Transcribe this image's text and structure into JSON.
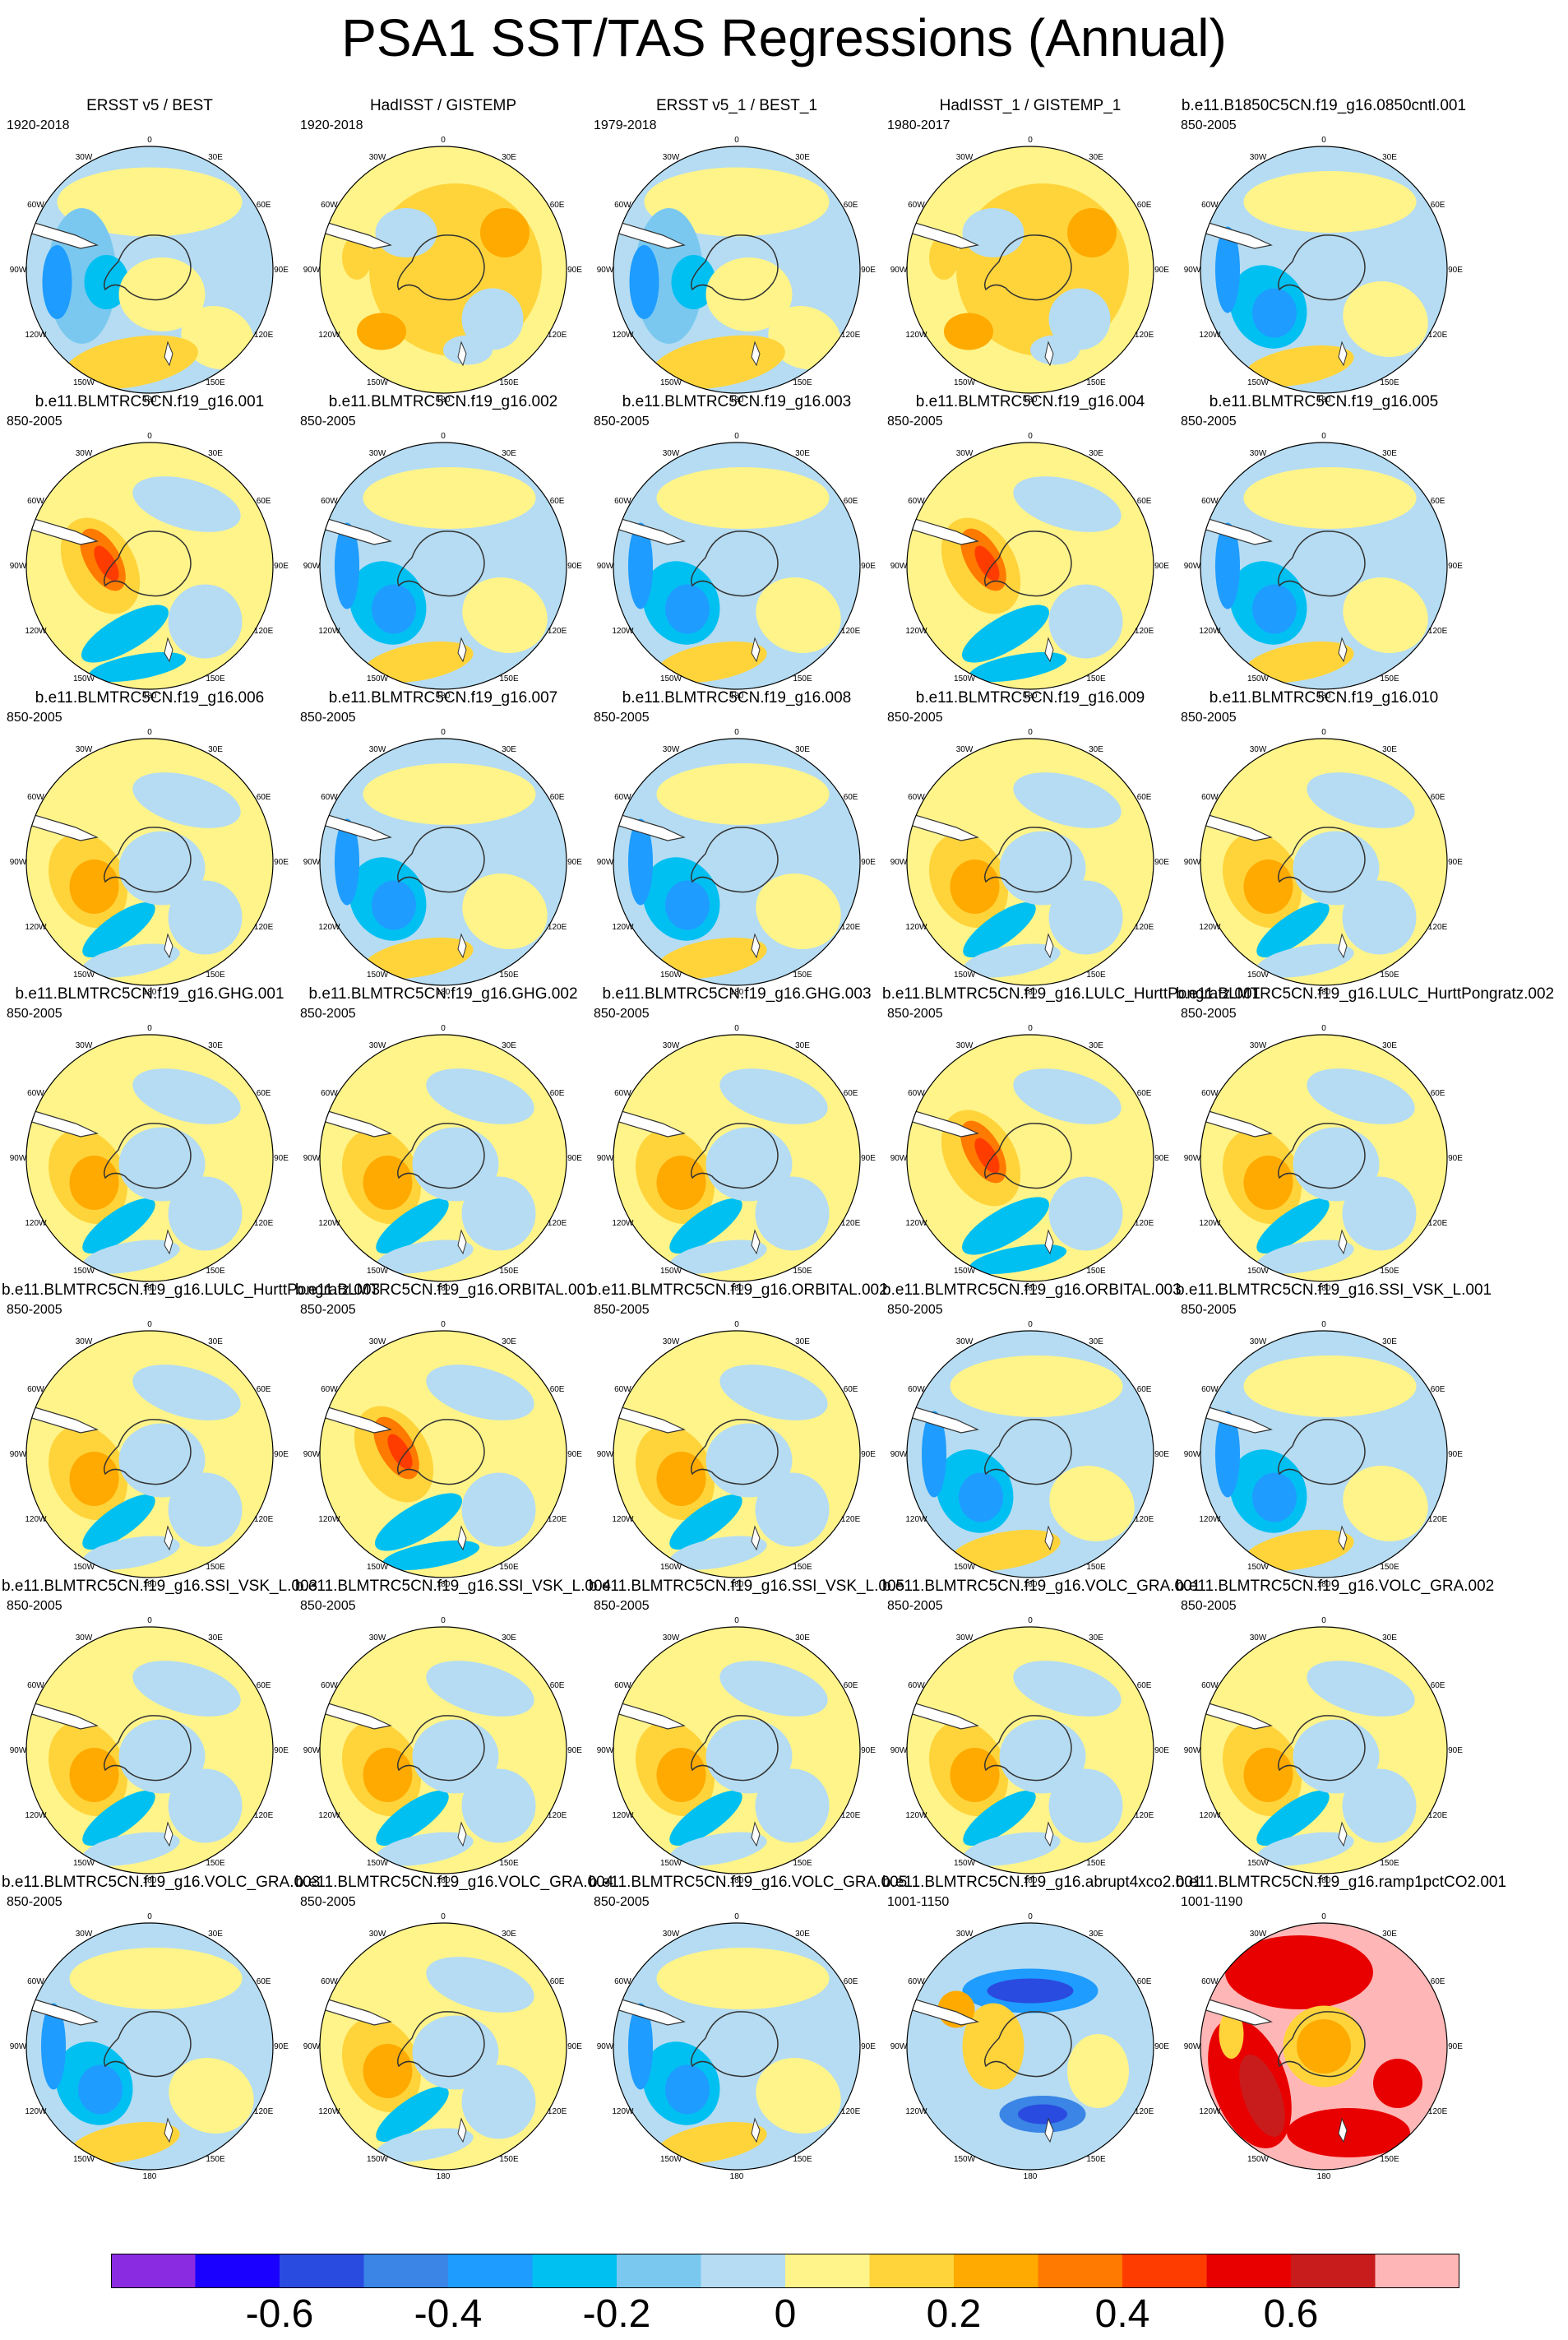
{
  "title": "PSA1 SST/TAS Regressions (Annual)",
  "chart_data": {
    "type": "heatmap",
    "projection": "south-polar-stereographic",
    "layout": "7 rows x 5 columns",
    "longitude_labels": [
      "0",
      "30E",
      "60E",
      "90E",
      "120E",
      "150E",
      "180",
      "150W",
      "120W",
      "90W",
      "60W",
      "30W"
    ],
    "colorbar": {
      "colors": [
        "#8a2be2",
        "#1a00ff",
        "#2a4be0",
        "#3a85e6",
        "#1e9cff",
        "#00c0f2",
        "#7ac8ef",
        "#b5dcf2",
        "#fff48a",
        "#ffd43b",
        "#ffaa00",
        "#ff7a00",
        "#ff3c00",
        "#e80000",
        "#c81c1c",
        "#ffb6b6"
      ],
      "tick_labels": [
        "-0.6",
        "-0.4",
        "-0.2",
        "0",
        "0.2",
        "0.4",
        "0.6"
      ],
      "tick_values": [
        -0.6,
        -0.4,
        -0.2,
        0,
        0.2,
        0.4,
        0.6
      ],
      "range": [
        -0.8,
        0.8
      ]
    },
    "panels": [
      {
        "title": "ERSST v5 / BEST",
        "period": "1920-2018",
        "style": "obs"
      },
      {
        "title": "HadISST / GISTEMP",
        "period": "1920-2018",
        "style": "warm"
      },
      {
        "title": "ERSST v5_1 / BEST_1",
        "period": "1979-2018",
        "style": "obs"
      },
      {
        "title": "HadISST_1 / GISTEMP_1",
        "period": "1980-2017",
        "style": "warm"
      },
      {
        "title": "b.e11.B1850C5CN.f19_g16.0850cntl.001",
        "period": "850-2005",
        "style": "cool"
      },
      {
        "title": "b.e11.BLMTRC5CN.f19_g16.001",
        "period": "850-2005",
        "style": "dipole"
      },
      {
        "title": "b.e11.BLMTRC5CN.f19_g16.002",
        "period": "850-2005",
        "style": "cool"
      },
      {
        "title": "b.e11.BLMTRC5CN.f19_g16.003",
        "period": "850-2005",
        "style": "cool"
      },
      {
        "title": "b.e11.BLMTRC5CN.f19_g16.004",
        "period": "850-2005",
        "style": "dipole"
      },
      {
        "title": "b.e11.BLMTRC5CN.f19_g16.005",
        "period": "850-2005",
        "style": "cool"
      },
      {
        "title": "b.e11.BLMTRC5CN.f19_g16.006",
        "period": "850-2005",
        "style": "mixed"
      },
      {
        "title": "b.e11.BLMTRC5CN.f19_g16.007",
        "period": "850-2005",
        "style": "cool"
      },
      {
        "title": "b.e11.BLMTRC5CN.f19_g16.008",
        "period": "850-2005",
        "style": "cool"
      },
      {
        "title": "b.e11.BLMTRC5CN.f19_g16.009",
        "period": "850-2005",
        "style": "mixed"
      },
      {
        "title": "b.e11.BLMTRC5CN.f19_g16.010",
        "period": "850-2005",
        "style": "mixed"
      },
      {
        "title": "b.e11.BLMTRC5CN.f19_g16.GHG.001",
        "period": "850-2005",
        "style": "mixed"
      },
      {
        "title": "b.e11.BLMTRC5CN.f19_g16.GHG.002",
        "period": "850-2005",
        "style": "mixed"
      },
      {
        "title": "b.e11.BLMTRC5CN.f19_g16.GHG.003",
        "period": "850-2005",
        "style": "mixed"
      },
      {
        "title": "b.e11.BLMTRC5CN.f19_g16.LULC_HurttPongratz.001",
        "period": "850-2005",
        "style": "dipole"
      },
      {
        "title": "b.e11.BLMTRC5CN.f19_g16.LULC_HurttPongratz.002",
        "period": "850-2005",
        "style": "mixed"
      },
      {
        "title": "b.e11.BLMTRC5CN.f19_g16.LULC_HurttPongratz.003",
        "period": "850-2005",
        "style": "mixed"
      },
      {
        "title": "b.e11.BLMTRC5CN.f19_g16.ORBITAL.001",
        "period": "850-2005",
        "style": "dipole"
      },
      {
        "title": "b.e11.BLMTRC5CN.f19_g16.ORBITAL.002",
        "period": "850-2005",
        "style": "mixed"
      },
      {
        "title": "b.e11.BLMTRC5CN.f19_g16.ORBITAL.003",
        "period": "850-2005",
        "style": "cool"
      },
      {
        "title": "b.e11.BLMTRC5CN.f19_g16.SSI_VSK_L.001",
        "period": "850-2005",
        "style": "cool"
      },
      {
        "title": "b.e11.BLMTRC5CN.f19_g16.SSI_VSK_L.003",
        "period": "850-2005",
        "style": "mixed"
      },
      {
        "title": "b.e11.BLMTRC5CN.f19_g16.SSI_VSK_L.004",
        "period": "850-2005",
        "style": "mixed"
      },
      {
        "title": "b.e11.BLMTRC5CN.f19_g16.SSI_VSK_L.005",
        "period": "850-2005",
        "style": "mixed"
      },
      {
        "title": "b.e11.BLMTRC5CN.f19_g16.VOLC_GRA.001",
        "period": "850-2005",
        "style": "mixed"
      },
      {
        "title": "b.e11.BLMTRC5CN.f19_g16.VOLC_GRA.002",
        "period": "850-2005",
        "style": "mixed"
      },
      {
        "title": "b.e11.BLMTRC5CN.f19_g16.VOLC_GRA.003",
        "period": "850-2005",
        "style": "cool"
      },
      {
        "title": "b.e11.BLMTRC5CN.f19_g16.VOLC_GRA.004",
        "period": "850-2005",
        "style": "mixed"
      },
      {
        "title": "b.e11.BLMTRC5CN.f19_g16.VOLC_GRA.005",
        "period": "850-2005",
        "style": "cool"
      },
      {
        "title": "b.e11.BLMTRC5CN.f19_g16.abrupt4xco2.001",
        "period": "1001-1150",
        "style": "abrupt"
      },
      {
        "title": "b.e11.BLMTRC5CN.f19_g16.ramp1pctCO2.001",
        "period": "1001-1190",
        "style": "hot"
      }
    ]
  }
}
